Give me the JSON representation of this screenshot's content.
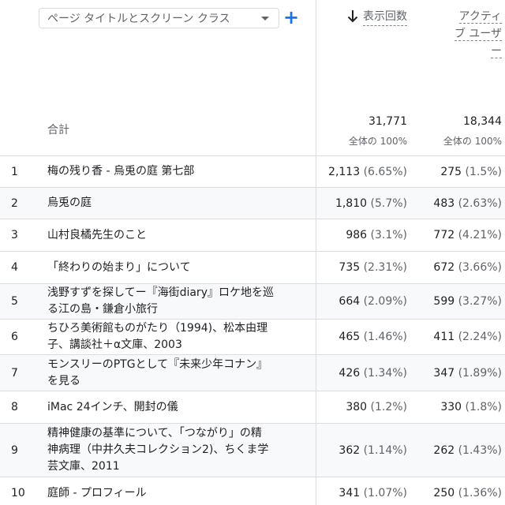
{
  "header": {
    "dimension_label": "ページ タイトルとスクリーン クラス",
    "add_label": "+",
    "metric1_label": "表示回数",
    "metric2_line1": "アクティ",
    "metric2_line2": "ブ ユーザ",
    "metric2_line3": "ー"
  },
  "totals": {
    "label": "合計",
    "metric1_value": "31,771",
    "metric1_sub": "全体の 100%",
    "metric2_value": "18,344",
    "metric2_sub": "全体の 100%"
  },
  "rows": [
    {
      "rank": "1",
      "title_l1": "梅の残り香 - 烏兎の庭 第七部",
      "title_l2": "",
      "views": "2,113",
      "views_pct": "(6.65%)",
      "users": "275",
      "users_pct": "(1.5%)"
    },
    {
      "rank": "2",
      "title_l1": "烏兎の庭",
      "title_l2": "",
      "views": "1,810",
      "views_pct": "(5.7%)",
      "users": "483",
      "users_pct": "(2.63%)"
    },
    {
      "rank": "3",
      "title_l1": "山村良橘先生のこと",
      "title_l2": "",
      "views": "986",
      "views_pct": "(3.1%)",
      "users": "772",
      "users_pct": "(4.21%)"
    },
    {
      "rank": "4",
      "title_l1": "「終わりの始まり」について",
      "title_l2": "",
      "views": "735",
      "views_pct": "(2.31%)",
      "users": "672",
      "users_pct": "(3.66%)"
    },
    {
      "rank": "5",
      "title_l1": "浅野すずを探してー『海街diary』ロケ地を巡",
      "title_l2": "る江の島・鎌倉小旅行",
      "views": "664",
      "views_pct": "(2.09%)",
      "users": "599",
      "users_pct": "(3.27%)"
    },
    {
      "rank": "6",
      "title_l1": "ちひろ美術館ものがたり（1994)、松本由理",
      "title_l2": "子、講談社＋α文庫、2003",
      "views": "465",
      "views_pct": "(1.46%)",
      "users": "411",
      "users_pct": "(2.24%)"
    },
    {
      "rank": "7",
      "title_l1": "モンスリーのPTGとして『未来少年コナン』",
      "title_l2": "を見る",
      "views": "426",
      "views_pct": "(1.34%)",
      "users": "347",
      "users_pct": "(1.89%)"
    },
    {
      "rank": "8",
      "title_l1": "iMac 24インチ、開封の儀",
      "title_l2": "",
      "views": "380",
      "views_pct": "(1.2%)",
      "users": "330",
      "users_pct": "(1.8%)"
    },
    {
      "rank": "9",
      "title_l1": "精神健康の基準について、「つながり」の精",
      "title_l2": "神病理（中井久夫コレクション2)、ちくま学",
      "title_l3": "芸文庫、2011",
      "views": "362",
      "views_pct": "(1.14%)",
      "users": "262",
      "users_pct": "(1.43%)"
    },
    {
      "rank": "10",
      "title_l1": "庭師 - プロフィール",
      "title_l2": "",
      "views": "341",
      "views_pct": "(1.07%)",
      "users": "250",
      "users_pct": "(1.36%)"
    }
  ]
}
